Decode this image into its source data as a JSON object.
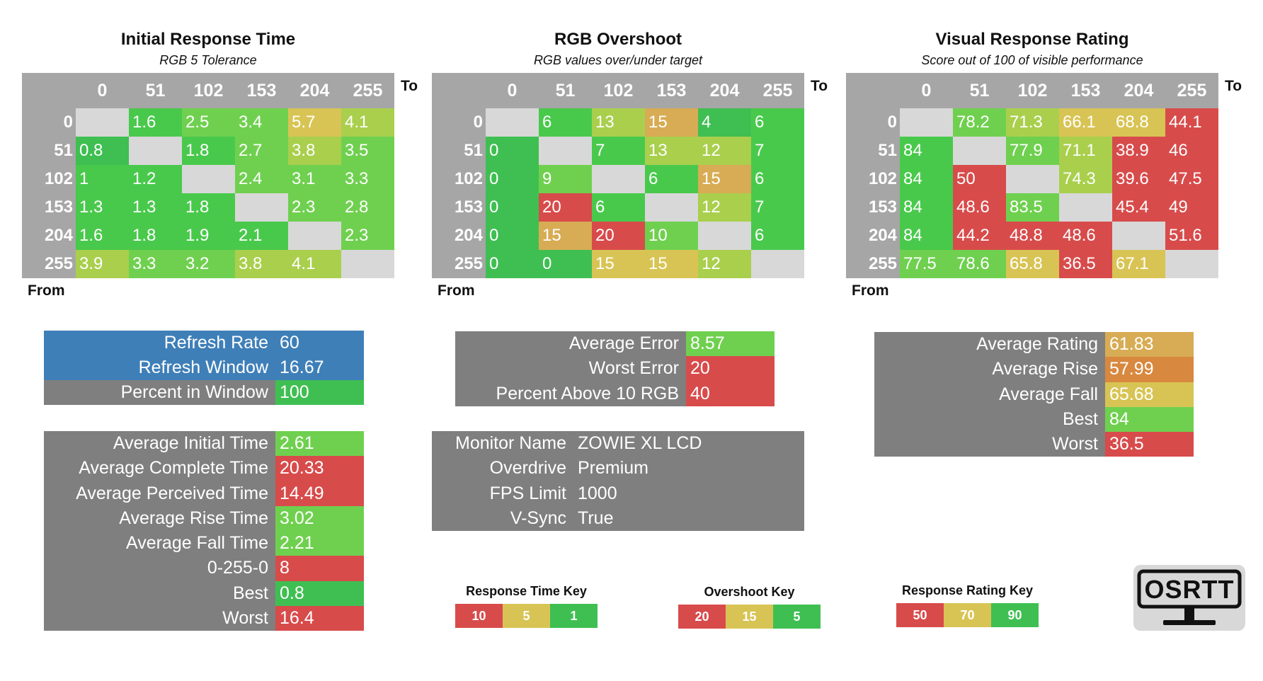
{
  "headers": [
    "0",
    "51",
    "102",
    "153",
    "204",
    "255"
  ],
  "axis": {
    "to": "To",
    "from": "From"
  },
  "colors": {
    "empty": "#d8d8d8",
    "dark_green": "#3fbf52",
    "green": "#49c94c",
    "light_green": "#6fd04f",
    "yellow_green": "#a9cf4d",
    "yellow": "#d8c454",
    "orange": "#d8ac54",
    "dark_orange": "#d8883f",
    "red": "#d84b4b",
    "blue": "#3f7fb8",
    "gray": "#7f7f7f"
  },
  "matrices": [
    {
      "title": "Initial Response Time",
      "subtitle": "RGB 5 Tolerance",
      "rows": [
        [
          "",
          "1.6",
          "2.5",
          "3.4",
          "5.7",
          "4.1"
        ],
        [
          "0.8",
          "",
          "1.8",
          "2.7",
          "3.8",
          "3.5"
        ],
        [
          "1",
          "1.2",
          "",
          "2.4",
          "3.1",
          "3.3"
        ],
        [
          "1.3",
          "1.3",
          "1.8",
          "",
          "2.3",
          "2.8"
        ],
        [
          "1.6",
          "1.8",
          "1.9",
          "2.1",
          "",
          "2.3"
        ],
        [
          "3.9",
          "3.3",
          "3.2",
          "3.8",
          "4.1",
          ""
        ]
      ],
      "cell_colors": [
        [
          "empty",
          "green",
          "light_green",
          "light_green",
          "yellow",
          "yellow_green"
        ],
        [
          "dark_green",
          "empty",
          "green",
          "light_green",
          "yellow_green",
          "light_green"
        ],
        [
          "green",
          "green",
          "empty",
          "light_green",
          "light_green",
          "light_green"
        ],
        [
          "green",
          "green",
          "green",
          "empty",
          "light_green",
          "light_green"
        ],
        [
          "green",
          "green",
          "green",
          "green",
          "empty",
          "light_green"
        ],
        [
          "yellow_green",
          "light_green",
          "light_green",
          "yellow_green",
          "yellow_green",
          "empty"
        ]
      ]
    },
    {
      "title": "RGB Overshoot",
      "subtitle": "RGB values over/under target",
      "rows": [
        [
          "",
          "6",
          "13",
          "15",
          "4",
          "6"
        ],
        [
          "0",
          "",
          "7",
          "13",
          "12",
          "7"
        ],
        [
          "0",
          "9",
          "",
          "6",
          "15",
          "6"
        ],
        [
          "0",
          "20",
          "6",
          "",
          "12",
          "7"
        ],
        [
          "0",
          "15",
          "20",
          "10",
          "",
          "6"
        ],
        [
          "0",
          "0",
          "15",
          "15",
          "12",
          ""
        ]
      ],
      "cell_colors": [
        [
          "empty",
          "green",
          "yellow_green",
          "orange",
          "dark_green",
          "green"
        ],
        [
          "dark_green",
          "empty",
          "green",
          "yellow_green",
          "yellow_green",
          "green"
        ],
        [
          "dark_green",
          "light_green",
          "empty",
          "green",
          "orange",
          "green"
        ],
        [
          "dark_green",
          "red",
          "green",
          "empty",
          "yellow_green",
          "green"
        ],
        [
          "dark_green",
          "orange",
          "red",
          "light_green",
          "empty",
          "green"
        ],
        [
          "dark_green",
          "dark_green",
          "yellow",
          "yellow",
          "yellow_green",
          "empty"
        ]
      ]
    },
    {
      "title": "Visual Response Rating",
      "subtitle": "Score out of 100 of visible performance",
      "rows": [
        [
          "",
          "78.2",
          "71.3",
          "66.1",
          "68.8",
          "44.1"
        ],
        [
          "84",
          "",
          "77.9",
          "71.1",
          "38.9",
          "46"
        ],
        [
          "84",
          "50",
          "",
          "74.3",
          "39.6",
          "47.5"
        ],
        [
          "84",
          "48.6",
          "83.5",
          "",
          "45.4",
          "49"
        ],
        [
          "84",
          "44.2",
          "48.8",
          "48.6",
          "",
          "51.6"
        ],
        [
          "77.5",
          "78.6",
          "65.8",
          "36.5",
          "67.1",
          ""
        ]
      ],
      "cell_colors": [
        [
          "empty",
          "light_green",
          "yellow_green",
          "yellow",
          "yellow",
          "red"
        ],
        [
          "green",
          "empty",
          "light_green",
          "yellow_green",
          "red",
          "red"
        ],
        [
          "green",
          "red",
          "empty",
          "yellow_green",
          "red",
          "red"
        ],
        [
          "green",
          "red",
          "light_green",
          "empty",
          "red",
          "red"
        ],
        [
          "green",
          "red",
          "red",
          "red",
          "empty",
          "red"
        ],
        [
          "light_green",
          "light_green",
          "yellow",
          "red",
          "yellow",
          "empty"
        ]
      ]
    }
  ],
  "refresh_box": [
    {
      "label": "Refresh Rate",
      "value": "60",
      "label_color": "blue",
      "value_color": "blue"
    },
    {
      "label": "Refresh Window",
      "value": "16.67",
      "label_color": "blue",
      "value_color": "blue"
    },
    {
      "label": "Percent in Window",
      "value": "100",
      "label_color": "gray",
      "value_color": "dark_green"
    }
  ],
  "time_box": [
    {
      "label": "Average Initial Time",
      "value": "2.61",
      "value_color": "light_green"
    },
    {
      "label": "Average Complete Time",
      "value": "20.33",
      "value_color": "red"
    },
    {
      "label": "Average Perceived Time",
      "value": "14.49",
      "value_color": "red"
    },
    {
      "label": "Average Rise Time",
      "value": "3.02",
      "value_color": "light_green"
    },
    {
      "label": "Average Fall Time",
      "value": "2.21",
      "value_color": "light_green"
    },
    {
      "label": "0-255-0",
      "value": "8",
      "value_color": "red"
    },
    {
      "label": "Best",
      "value": "0.8",
      "value_color": "dark_green"
    },
    {
      "label": "Worst",
      "value": "16.4",
      "value_color": "red"
    }
  ],
  "error_box": [
    {
      "label": "Average Error",
      "value": "8.57",
      "value_color": "light_green"
    },
    {
      "label": "Worst Error",
      "value": "20",
      "value_color": "red"
    },
    {
      "label": "Percent Above 10 RGB",
      "value": "40",
      "value_color": "red"
    }
  ],
  "monitor_box": [
    {
      "label": "Monitor Name",
      "value": "ZOWIE XL LCD"
    },
    {
      "label": "Overdrive",
      "value": "Premium"
    },
    {
      "label": "FPS Limit",
      "value": "1000"
    },
    {
      "label": "V-Sync",
      "value": "True"
    }
  ],
  "rating_box": [
    {
      "label": "Average Rating",
      "value": "61.83",
      "value_color": "orange"
    },
    {
      "label": "Average Rise",
      "value": "57.99",
      "value_color": "dark_orange"
    },
    {
      "label": "Average Fall",
      "value": "65.68",
      "value_color": "yellow"
    },
    {
      "label": "Best",
      "value": "84",
      "value_color": "light_green"
    },
    {
      "label": "Worst",
      "value": "36.5",
      "value_color": "red"
    }
  ],
  "keys": [
    {
      "title": "Response Time Key",
      "items": [
        {
          "label": "10",
          "color": "red"
        },
        {
          "label": "5",
          "color": "yellow"
        },
        {
          "label": "1",
          "color": "dark_green"
        }
      ]
    },
    {
      "title": "Overshoot Key",
      "items": [
        {
          "label": "20",
          "color": "red"
        },
        {
          "label": "15",
          "color": "yellow"
        },
        {
          "label": "5",
          "color": "dark_green"
        }
      ]
    },
    {
      "title": "Response Rating Key",
      "items": [
        {
          "label": "50",
          "color": "red"
        },
        {
          "label": "70",
          "color": "yellow"
        },
        {
          "label": "90",
          "color": "dark_green"
        }
      ]
    }
  ],
  "logo": {
    "text": "OSRTT"
  },
  "chart_data": [
    {
      "type": "heatmap",
      "title": "Initial Response Time",
      "subtitle": "RGB 5 Tolerance",
      "xlabel": "To",
      "ylabel": "From",
      "x": [
        "0",
        "51",
        "102",
        "153",
        "204",
        "255"
      ],
      "y": [
        "0",
        "51",
        "102",
        "153",
        "204",
        "255"
      ],
      "values": [
        [
          null,
          1.6,
          2.5,
          3.4,
          5.7,
          4.1
        ],
        [
          0.8,
          null,
          1.8,
          2.7,
          3.8,
          3.5
        ],
        [
          1,
          1.2,
          null,
          2.4,
          3.1,
          3.3
        ],
        [
          1.3,
          1.3,
          1.8,
          null,
          2.3,
          2.8
        ],
        [
          1.6,
          1.8,
          1.9,
          2.1,
          null,
          2.3
        ],
        [
          3.9,
          3.3,
          3.2,
          3.8,
          4.1,
          null
        ]
      ]
    },
    {
      "type": "heatmap",
      "title": "RGB Overshoot",
      "subtitle": "RGB values over/under target",
      "xlabel": "To",
      "ylabel": "From",
      "x": [
        "0",
        "51",
        "102",
        "153",
        "204",
        "255"
      ],
      "y": [
        "0",
        "51",
        "102",
        "153",
        "204",
        "255"
      ],
      "values": [
        [
          null,
          6,
          13,
          15,
          4,
          6
        ],
        [
          0,
          null,
          7,
          13,
          12,
          7
        ],
        [
          0,
          9,
          null,
          6,
          15,
          6
        ],
        [
          0,
          20,
          6,
          null,
          12,
          7
        ],
        [
          0,
          15,
          20,
          10,
          null,
          6
        ],
        [
          0,
          0,
          15,
          15,
          12,
          null
        ]
      ]
    },
    {
      "type": "heatmap",
      "title": "Visual Response Rating",
      "subtitle": "Score out of 100 of visible performance",
      "xlabel": "To",
      "ylabel": "From",
      "x": [
        "0",
        "51",
        "102",
        "153",
        "204",
        "255"
      ],
      "y": [
        "0",
        "51",
        "102",
        "153",
        "204",
        "255"
      ],
      "values": [
        [
          null,
          78.2,
          71.3,
          66.1,
          68.8,
          44.1
        ],
        [
          84,
          null,
          77.9,
          71.1,
          38.9,
          46
        ],
        [
          84,
          50,
          null,
          74.3,
          39.6,
          47.5
        ],
        [
          84,
          48.6,
          83.5,
          null,
          45.4,
          49
        ],
        [
          84,
          44.2,
          48.8,
          48.6,
          null,
          51.6
        ],
        [
          77.5,
          78.6,
          65.8,
          36.5,
          67.1,
          null
        ]
      ]
    }
  ]
}
